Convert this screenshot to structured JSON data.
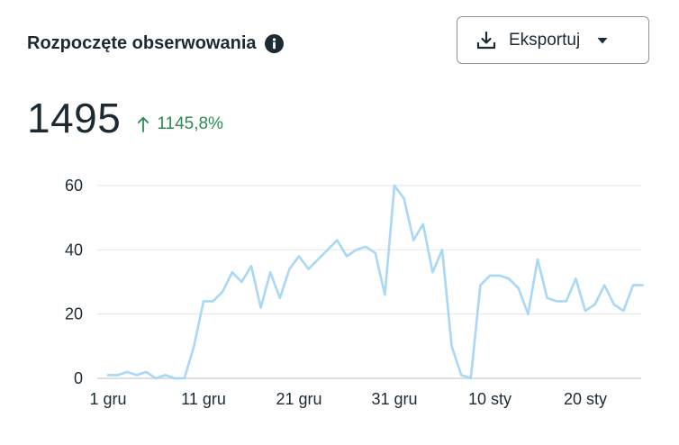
{
  "card": {
    "title": "Rozpoczęte obserwowania",
    "info_icon": "info-icon",
    "export_button": {
      "label": "Eksportuj",
      "icon": "download-icon",
      "caret_icon": "caret-down-icon"
    },
    "metric": {
      "value": "1495",
      "delta": "1145,8%",
      "delta_direction": "up",
      "delta_color": "#2e8b57"
    }
  },
  "chart_data": {
    "type": "line",
    "title": "",
    "xlabel": "",
    "ylabel": "",
    "ylim": [
      0,
      60
    ],
    "yticks": [
      "0",
      "20",
      "40",
      "60"
    ],
    "xticks": [
      "1 gru",
      "11 gru",
      "21 gru",
      "31 gru",
      "10 sty",
      "20 sty"
    ],
    "grid": true,
    "line_color": "#a8d8f5",
    "x_start": "1 gru",
    "values": [
      1,
      1,
      2,
      1,
      2,
      0,
      1,
      0,
      0,
      10,
      24,
      24,
      27,
      33,
      30,
      35,
      22,
      33,
      25,
      34,
      38,
      34,
      37,
      40,
      43,
      38,
      40,
      41,
      39,
      26,
      60,
      56,
      43,
      48,
      33,
      40,
      10,
      1,
      0,
      29,
      32,
      32,
      31,
      28,
      20,
      37,
      25,
      24,
      24,
      31,
      21,
      23,
      29,
      23,
      21,
      29,
      29
    ]
  }
}
